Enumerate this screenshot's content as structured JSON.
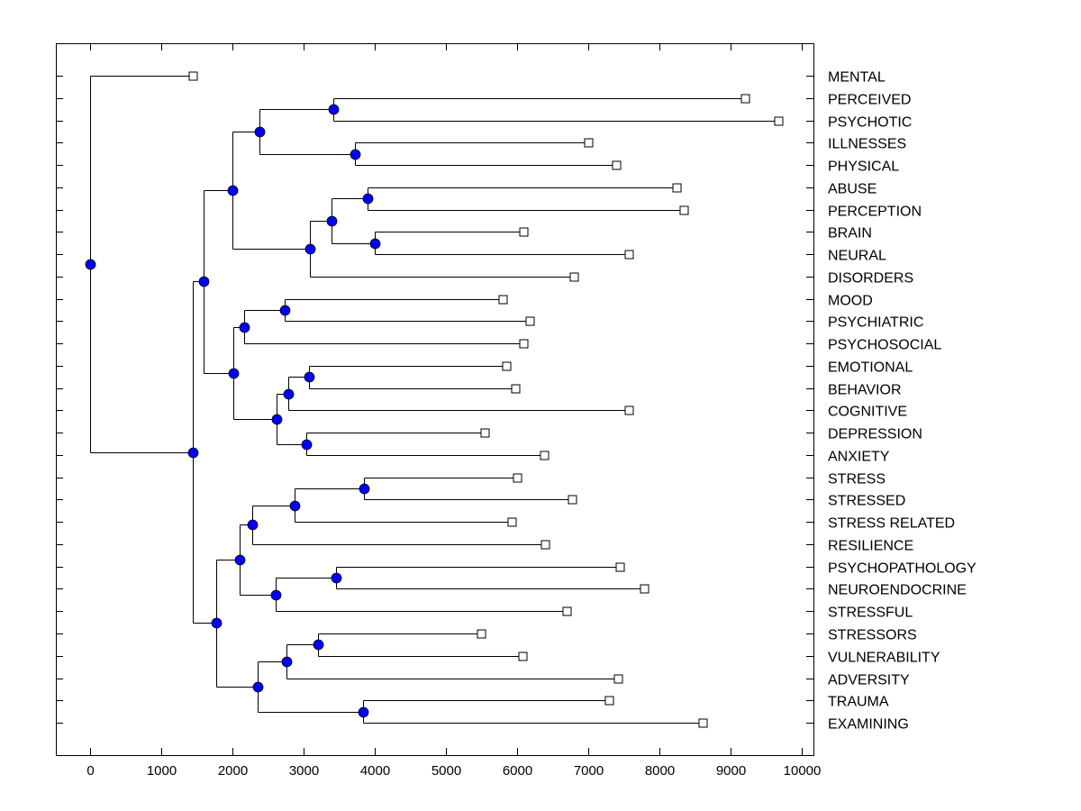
{
  "chart_data": {
    "type": "dendrogram",
    "title": "",
    "xlabel": "",
    "ylabel": "",
    "xlim": [
      -500,
      10200
    ],
    "x_ticks": [
      "0",
      "1000",
      "2000",
      "3000",
      "4000",
      "5000",
      "6000",
      "7000",
      "8000",
      "9000",
      "10000"
    ],
    "x_tick_values": [
      0,
      1000,
      2000,
      3000,
      4000,
      5000,
      6000,
      7000,
      8000,
      9000,
      10000
    ],
    "grid": false,
    "node_color": "#0000FF",
    "leaf_marker": "open-square",
    "leaves": [
      "MENTAL",
      "PERCEIVED",
      "PSYCHOTIC",
      "ILLNESSES",
      "PHYSICAL",
      "ABUSE",
      "PERCEPTION",
      "BRAIN",
      "NEURAL",
      "DISORDERS",
      "MOOD",
      "PSYCHIATRIC",
      "PSYCHOSOCIAL",
      "EMOTIONAL",
      "BEHAVIOR",
      "COGNITIVE",
      "DEPRESSION",
      "ANXIETY",
      "STRESS",
      "STRESSED",
      "STRESS RELATED",
      "RESILIENCE",
      "PSYCHOPATHOLOGY",
      "NEUROENDOCRINE",
      "STRESSFUL",
      "STRESSORS",
      "VULNERABILITY",
      "ADVERSITY",
      "TRAUMA",
      "EXAMINING"
    ],
    "tree": {
      "value": 0,
      "children": [
        {
          "leaf": 0,
          "value": 1443
        },
        {
          "value": 1443,
          "children": [
            {
              "value": 1595,
              "children": [
                {
                  "value": 2000,
                  "children": [
                    {
                      "value": 2380,
                      "children": [
                        {
                          "value": 3418,
                          "children": [
                            {
                              "leaf": 1,
                              "value": 9203
                            },
                            {
                              "leaf": 2,
                              "value": 9671
                            }
                          ]
                        },
                        {
                          "value": 3722,
                          "children": [
                            {
                              "leaf": 3,
                              "value": 7000
                            },
                            {
                              "leaf": 4,
                              "value": 7392
                            }
                          ]
                        }
                      ]
                    },
                    {
                      "value": 3089,
                      "children": [
                        {
                          "value": 3392,
                          "children": [
                            {
                              "value": 3899,
                              "children": [
                                {
                                  "leaf": 5,
                                  "value": 8240
                                },
                                {
                                  "leaf": 6,
                                  "value": 8342
                                }
                              ]
                            },
                            {
                              "value": 4000,
                              "children": [
                                {
                                  "leaf": 7,
                                  "value": 6089
                                },
                                {
                                  "leaf": 8,
                                  "value": 7570
                                }
                              ]
                            }
                          ]
                        },
                        {
                          "leaf": 9,
                          "value": 6797
                        }
                      ]
                    }
                  ]
                },
                {
                  "value": 2013,
                  "children": [
                    {
                      "value": 2165,
                      "children": [
                        {
                          "value": 2734,
                          "children": [
                            {
                              "leaf": 10,
                              "value": 5797
                            },
                            {
                              "leaf": 11,
                              "value": 6177
                            }
                          ]
                        },
                        {
                          "leaf": 12,
                          "value": 6089
                        }
                      ]
                    },
                    {
                      "value": 2620,
                      "children": [
                        {
                          "value": 2785,
                          "children": [
                            {
                              "value": 3076,
                              "children": [
                                {
                                  "leaf": 13,
                                  "value": 5848
                                },
                                {
                                  "leaf": 14,
                                  "value": 5975
                                }
                              ]
                            },
                            {
                              "leaf": 15,
                              "value": 7570
                            }
                          ]
                        },
                        {
                          "value": 3038,
                          "children": [
                            {
                              "leaf": 16,
                              "value": 5544
                            },
                            {
                              "leaf": 17,
                              "value": 6380
                            }
                          ]
                        }
                      ]
                    }
                  ]
                }
              ]
            },
            {
              "value": 1772,
              "children": [
                {
                  "value": 2101,
                  "children": [
                    {
                      "value": 2278,
                      "children": [
                        {
                          "value": 2873,
                          "children": [
                            {
                              "value": 3848,
                              "children": [
                                {
                                  "leaf": 18,
                                  "value": 6000
                                },
                                {
                                  "leaf": 19,
                                  "value": 6772
                                }
                              ]
                            },
                            {
                              "leaf": 20,
                              "value": 5924
                            }
                          ]
                        },
                        {
                          "leaf": 21,
                          "value": 6392
                        }
                      ]
                    },
                    {
                      "value": 2608,
                      "children": [
                        {
                          "value": 3456,
                          "children": [
                            {
                              "leaf": 22,
                              "value": 7443
                            },
                            {
                              "leaf": 23,
                              "value": 7785
                            }
                          ]
                        },
                        {
                          "leaf": 24,
                          "value": 6696
                        }
                      ]
                    }
                  ]
                },
                {
                  "value": 2354,
                  "children": [
                    {
                      "value": 2759,
                      "children": [
                        {
                          "value": 3203,
                          "children": [
                            {
                              "leaf": 25,
                              "value": 5494
                            },
                            {
                              "leaf": 26,
                              "value": 6076
                            }
                          ]
                        },
                        {
                          "leaf": 27,
                          "value": 7418
                        }
                      ]
                    },
                    {
                      "value": 3835,
                      "children": [
                        {
                          "leaf": 28,
                          "value": 7291
                        },
                        {
                          "leaf": 29,
                          "value": 8608
                        }
                      ]
                    }
                  ]
                }
              ]
            }
          ]
        }
      ]
    }
  }
}
